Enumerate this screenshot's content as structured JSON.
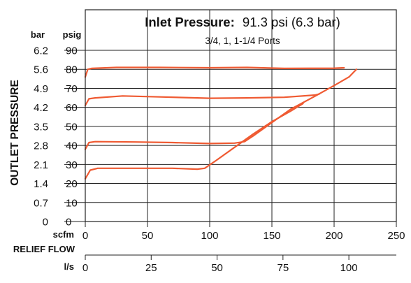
{
  "chart_data": {
    "type": "line",
    "title_label": "Inlet Pressure:",
    "title_value": "91.3 psi (6.3 bar)",
    "subtitle": "3/4, 1, 1-1/4 Ports",
    "ylabel": "OUTLET PRESSURE",
    "y_unit_bar": "bar",
    "y_unit_psig": "psig",
    "y_ticks_psig": [
      "90",
      "80",
      "70",
      "60",
      "50",
      "40",
      "30",
      "20",
      "10",
      "0"
    ],
    "y_ticks_bar": [
      "6.2",
      "5.6",
      "4.9",
      "4.2",
      "3.5",
      "2.8",
      "2.1",
      "1.4",
      "0.7",
      "0"
    ],
    "ylim": [
      0,
      90
    ],
    "xlabel": "RELIEF FLOW",
    "x_unit_scfm": "scfm",
    "x_unit_ls": "l/s",
    "x_ticks_scfm": [
      "0",
      "50",
      "100",
      "150",
      "200",
      "250"
    ],
    "x_ticks_ls": [
      "0",
      "25",
      "50",
      "75",
      "100"
    ],
    "xlim": [
      0,
      250
    ],
    "ls_per_scfm": 0.472,
    "line_color": "#ef5a32",
    "grid": true,
    "series": [
      {
        "values": [
          [
            0,
            76
          ],
          [
            2,
            80
          ],
          [
            5,
            80.5
          ],
          [
            25,
            81
          ],
          [
            60,
            81
          ],
          [
            100,
            80.8
          ],
          [
            130,
            81
          ],
          [
            160,
            80.5
          ],
          [
            200,
            80.6
          ],
          [
            208,
            80.8
          ]
        ]
      },
      {
        "values": [
          [
            0,
            61
          ],
          [
            3,
            64.5
          ],
          [
            8,
            65
          ],
          [
            30,
            66
          ],
          [
            60,
            65.5
          ],
          [
            90,
            65
          ],
          [
            100,
            64.8
          ],
          [
            130,
            65
          ],
          [
            160,
            65.3
          ],
          [
            185,
            66.5
          ],
          [
            188,
            67
          ]
        ]
      },
      {
        "values": [
          [
            0,
            38
          ],
          [
            3,
            41.5
          ],
          [
            8,
            42
          ],
          [
            40,
            41.8
          ],
          [
            70,
            41.5
          ],
          [
            100,
            41
          ],
          [
            120,
            41.2
          ],
          [
            128,
            42
          ],
          [
            135,
            45
          ],
          [
            150,
            52
          ],
          [
            165,
            59
          ],
          [
            185,
            66
          ],
          [
            200,
            71.5
          ],
          [
            212,
            76
          ],
          [
            218,
            80
          ]
        ]
      },
      {
        "values": [
          [
            0,
            22.5
          ],
          [
            4,
            27
          ],
          [
            10,
            28
          ],
          [
            40,
            28
          ],
          [
            70,
            28
          ],
          [
            90,
            27.5
          ],
          [
            96,
            28
          ],
          [
            105,
            32
          ],
          [
            120,
            39
          ],
          [
            135,
            46
          ],
          [
            150,
            52.5
          ],
          [
            165,
            58
          ],
          [
            175,
            62
          ]
        ]
      }
    ]
  }
}
